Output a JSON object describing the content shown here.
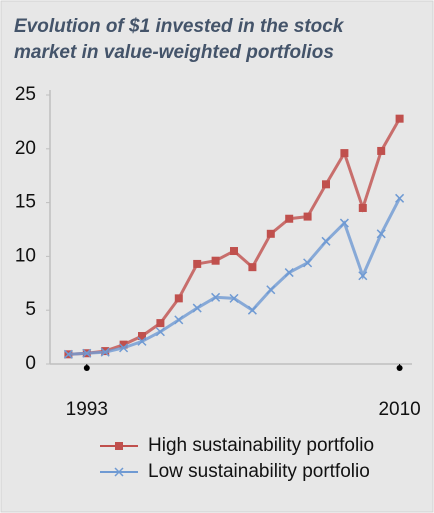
{
  "chart_data": {
    "type": "line",
    "title": "Evolution of $1 invested in the stock market in value-weighted portfolios",
    "x": [
      1992,
      1993,
      1994,
      1995,
      1996,
      1997,
      1998,
      1999,
      2000,
      2001,
      2002,
      2003,
      2004,
      2005,
      2006,
      2007,
      2008,
      2009,
      2010
    ],
    "xlim": [
      1991,
      2011
    ],
    "xticks": [
      1993,
      2010
    ],
    "ylim": [
      0,
      25
    ],
    "yticks": [
      0,
      5,
      10,
      15,
      20,
      25
    ],
    "series": [
      {
        "name": "High sustainability portfolio",
        "color": "#c0504d",
        "marker": "square",
        "values": [
          0.9,
          1.0,
          1.2,
          1.8,
          2.6,
          3.8,
          6.1,
          9.3,
          9.6,
          10.5,
          9.0,
          12.1,
          13.5,
          13.7,
          16.7,
          19.6,
          14.5,
          19.8,
          22.8
        ]
      },
      {
        "name": "Low sustainability portfolio",
        "color": "#6f9ad3",
        "marker": "x",
        "values": [
          0.9,
          1.0,
          1.1,
          1.5,
          2.1,
          3.0,
          4.1,
          5.2,
          6.2,
          6.1,
          5.0,
          6.9,
          8.5,
          9.4,
          11.4,
          13.1,
          8.2,
          12.1,
          15.4
        ]
      }
    ]
  }
}
